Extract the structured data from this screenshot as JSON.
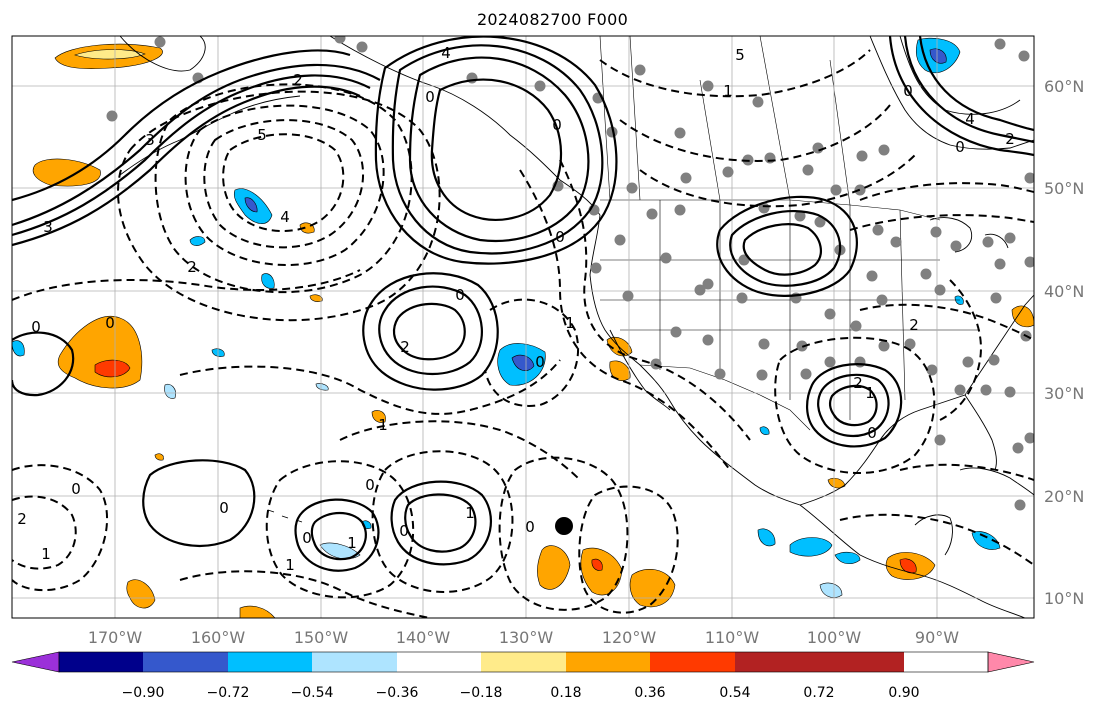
{
  "title": "2024082700 F000",
  "lon_labels": [
    "170°W",
    "160°W",
    "150°W",
    "140°W",
    "130°W",
    "120°W",
    "110°W",
    "100°W",
    "90°W"
  ],
  "lat_labels": [
    "60°N",
    "50°N",
    "40°N",
    "30°N",
    "20°N",
    "10°N"
  ],
  "colorbar": {
    "ticks": [
      "−0.90",
      "−0.72",
      "−0.54",
      "−0.36",
      "−0.18",
      "0.18",
      "0.36",
      "0.54",
      "0.72",
      "0.90"
    ],
    "colors": [
      "#9b30d9",
      "#00008b",
      "#3558cc",
      "#00bfff",
      "#aee4ff",
      "#ffffff",
      "#ffeb8a",
      "#ffa500",
      "#ff3a00",
      "#b22222",
      "#ff88aa"
    ]
  },
  "contour_labels": [
    {
      "text": "3"
    },
    {
      "text": "3"
    },
    {
      "text": "5"
    },
    {
      "text": "4"
    },
    {
      "text": "2"
    },
    {
      "text": "4"
    },
    {
      "text": "0"
    },
    {
      "text": "0"
    },
    {
      "text": "2"
    },
    {
      "text": "0"
    },
    {
      "text": "1"
    },
    {
      "text": "0"
    },
    {
      "text": "0"
    },
    {
      "text": "1"
    },
    {
      "text": "0"
    },
    {
      "text": "2"
    },
    {
      "text": "0"
    },
    {
      "text": "1"
    },
    {
      "text": "1"
    },
    {
      "text": "0"
    },
    {
      "text": "1"
    },
    {
      "text": "2"
    },
    {
      "text": "1"
    },
    {
      "text": "0"
    },
    {
      "text": "0"
    },
    {
      "text": "0"
    },
    {
      "text": "2"
    },
    {
      "text": "1"
    },
    {
      "text": "0"
    },
    {
      "text": "2"
    },
    {
      "text": "1"
    },
    {
      "text": "0"
    },
    {
      "text": "0"
    },
    {
      "text": "0"
    },
    {
      "text": "5"
    },
    {
      "text": "4"
    },
    {
      "text": "0"
    },
    {
      "text": "2"
    }
  ]
}
